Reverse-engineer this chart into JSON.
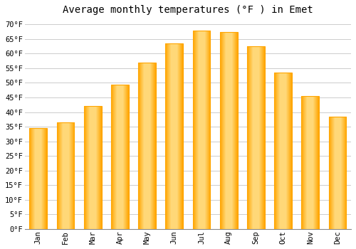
{
  "title": "Average monthly temperatures (°F ) in Emet",
  "months": [
    "Jan",
    "Feb",
    "Mar",
    "Apr",
    "May",
    "Jun",
    "Jul",
    "Aug",
    "Sep",
    "Oct",
    "Nov",
    "Dec"
  ],
  "values": [
    34.5,
    36.5,
    42.0,
    49.5,
    57.0,
    63.5,
    68.0,
    67.5,
    62.5,
    53.5,
    45.5,
    38.5
  ],
  "bar_color_center": "#FFD060",
  "bar_color_edge": "#FFA500",
  "background_color": "#FFFFFF",
  "grid_color": "#CCCCCC",
  "ylim": [
    0,
    72
  ],
  "yticks": [
    0,
    5,
    10,
    15,
    20,
    25,
    30,
    35,
    40,
    45,
    50,
    55,
    60,
    65,
    70
  ],
  "ytick_labels": [
    "0°F",
    "5°F",
    "10°F",
    "15°F",
    "20°F",
    "25°F",
    "30°F",
    "35°F",
    "40°F",
    "45°F",
    "50°F",
    "55°F",
    "60°F",
    "65°F",
    "70°F"
  ],
  "title_fontsize": 10,
  "tick_fontsize": 7.5,
  "font_family": "monospace"
}
